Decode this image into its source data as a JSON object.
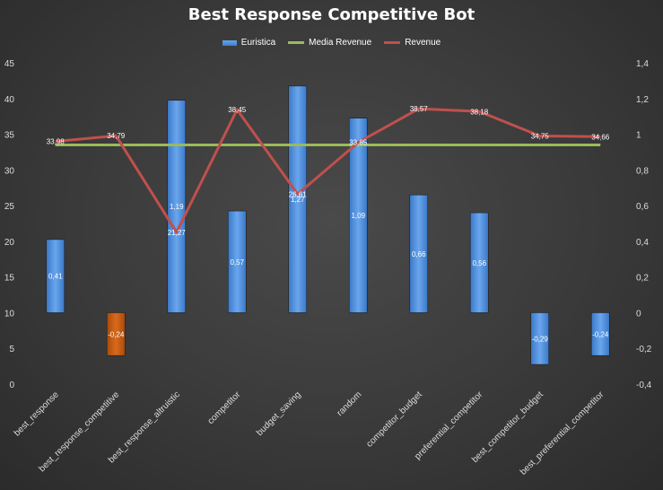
{
  "chart_data": {
    "type": "bar",
    "title": "Best Response Competitive Bot",
    "categories": [
      "best_response",
      "best_response_competitive",
      "best_response_altruistic",
      "competitor",
      "budget_saving",
      "random",
      "competitor_budget",
      "preferential_competitor",
      "best_competitor_budget",
      "best_preferential_competitor"
    ],
    "series": [
      {
        "name": "Euristica",
        "type": "bar",
        "axis": "right",
        "values": [
          0.41,
          -0.24,
          1.19,
          0.57,
          1.27,
          1.09,
          0.66,
          0.56,
          -0.29,
          -0.24
        ],
        "labels": [
          "0,41",
          "-0,24",
          "1,19",
          "0,57",
          "1,27",
          "1,09",
          "0,66",
          "0,56",
          "-0,29",
          "-0,24"
        ],
        "colors": [
          "#4a8be0",
          "#c05a10",
          "#4a8be0",
          "#4a8be0",
          "#4a8be0",
          "#4a8be0",
          "#4a8be0",
          "#4a8be0",
          "#4a8be0",
          "#4a8be0"
        ]
      },
      {
        "name": "Media Revenue",
        "type": "line",
        "axis": "left",
        "values": [
          33.5,
          33.5,
          33.5,
          33.5,
          33.5,
          33.5,
          33.5,
          33.5,
          33.5,
          33.5
        ],
        "color": "#9bbb59"
      },
      {
        "name": "Revenue",
        "type": "line",
        "axis": "left",
        "values": [
          33.98,
          34.79,
          21.27,
          38.45,
          26.61,
          33.85,
          38.57,
          38.18,
          34.75,
          34.66
        ],
        "labels": [
          "33,98",
          "34,79",
          "21,27",
          "38,45",
          "26,61",
          "33,85",
          "38,57",
          "38,18",
          "34,75",
          "34,66"
        ],
        "color": "#c0504d"
      }
    ],
    "y_left": {
      "ylim": [
        0,
        45
      ],
      "ticks": [
        0,
        5,
        10,
        15,
        20,
        25,
        30,
        35,
        40,
        45
      ],
      "tick_labels": [
        "0",
        "5",
        "10",
        "15",
        "20",
        "25",
        "30",
        "35",
        "40",
        "45"
      ]
    },
    "y_right": {
      "ylim": [
        -0.4,
        1.4
      ],
      "ticks": [
        -0.4,
        -0.2,
        0,
        0.2,
        0.4,
        0.6,
        0.8,
        1.0,
        1.2,
        1.4
      ],
      "tick_labels": [
        "-0,4",
        "-0,2",
        "0",
        "0,2",
        "0,4",
        "0,6",
        "0,8",
        "1",
        "1,2",
        "1,4"
      ]
    },
    "grid": false,
    "legend": "top-center",
    "background": "#3d3d3d"
  }
}
